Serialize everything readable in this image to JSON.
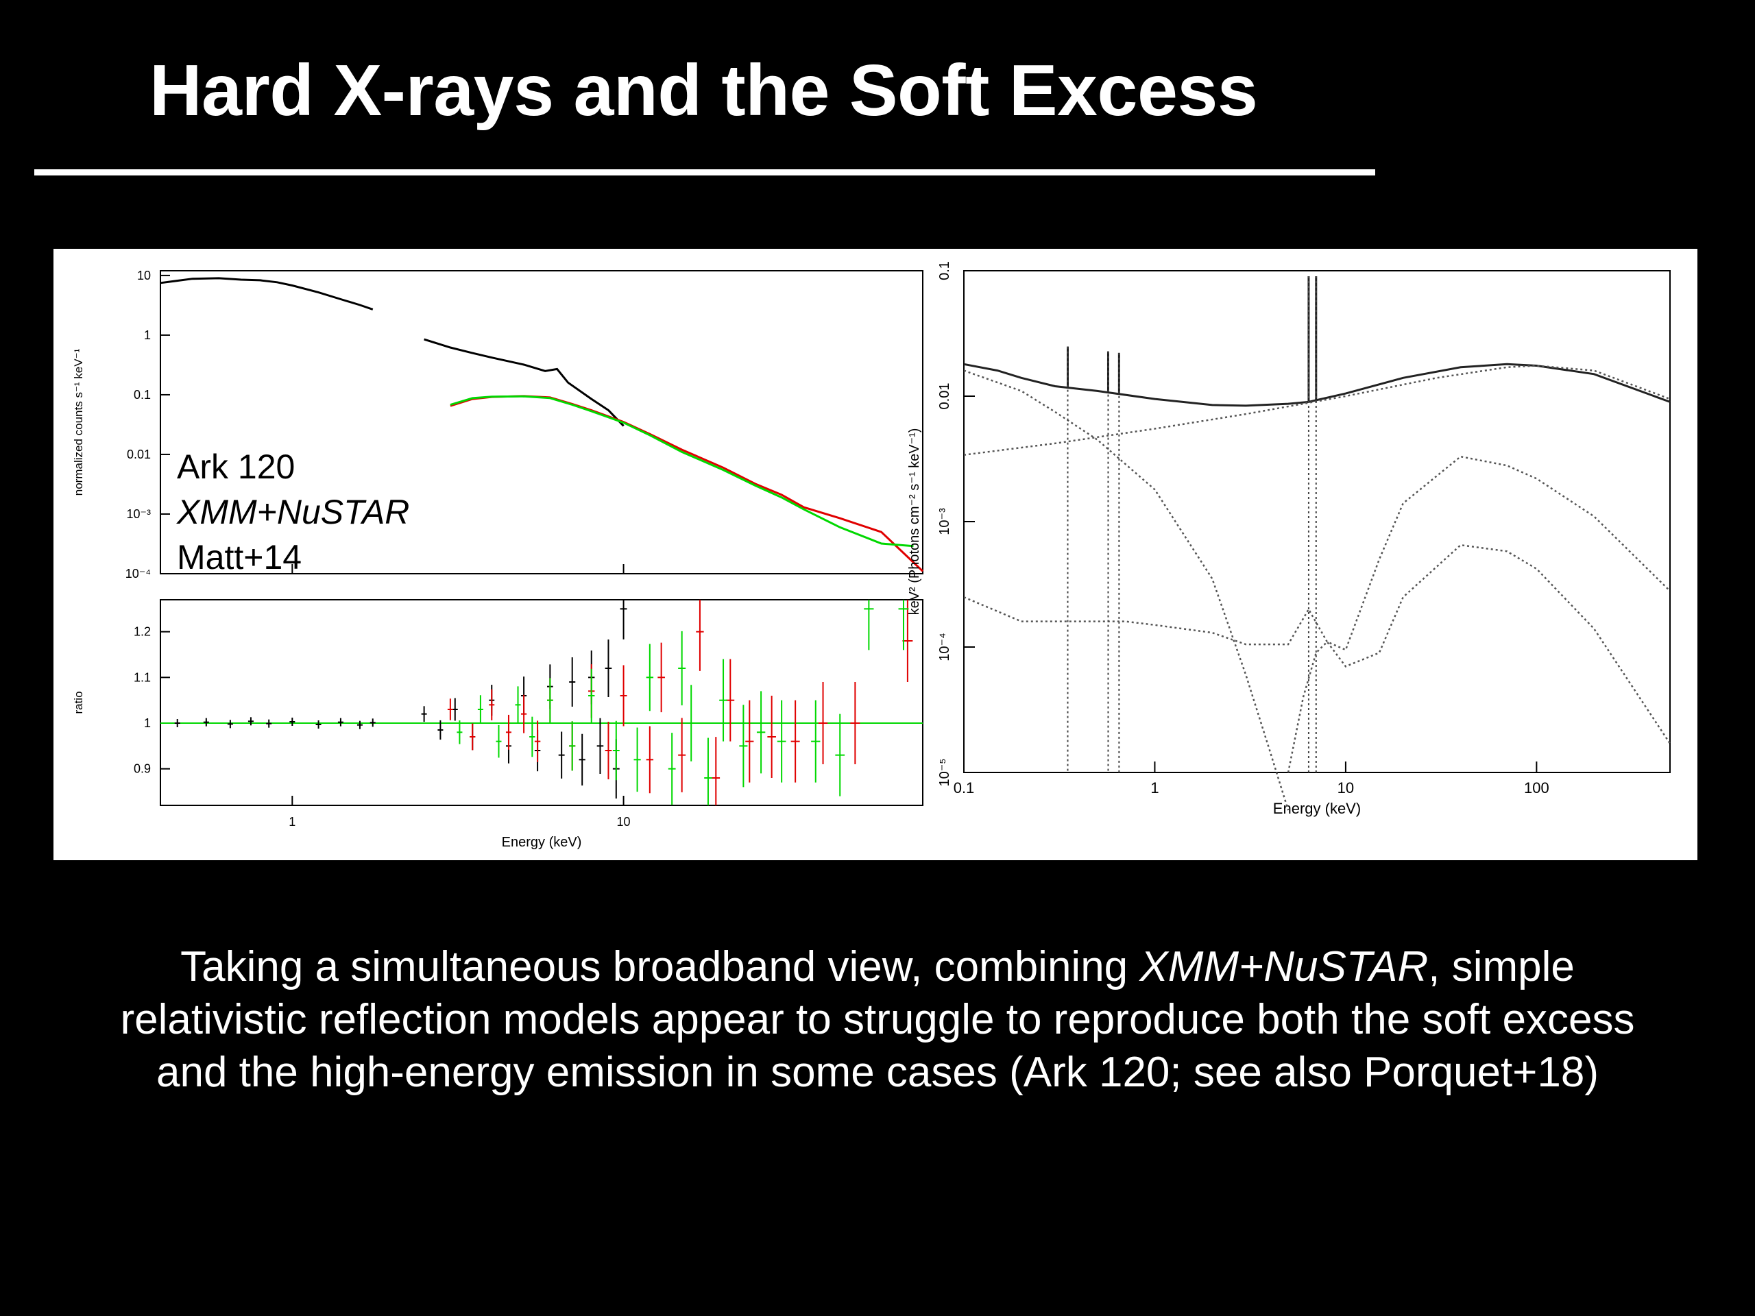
{
  "slide": {
    "title": "Hard X-rays and the Soft Excess",
    "caption": {
      "part1": "Taking a simultaneous broadband view, combining ",
      "italic": "XMM+NuSTAR",
      "part2": ", simple relativistic reflection models appear to struggle to reproduce both the soft excess and the high-energy emission in some cases (Ark 120; see also Porquet+18)"
    },
    "colors": {
      "background": "#000000",
      "text": "#ffffff",
      "panel": "#ffffff"
    }
  },
  "chart_data": [
    {
      "type": "line",
      "panel": "spectrum",
      "xscale": "log",
      "yscale": "log",
      "xlim": [
        0.4,
        80
      ],
      "ylim": [
        0.0001,
        12
      ],
      "xlabel": "Energy (keV)",
      "ylabel": "normalized counts s⁻¹ keV⁻¹",
      "xticks": [
        "1",
        "10"
      ],
      "yticks": [
        "10",
        "1",
        "0.1",
        "0.01",
        "10⁻³",
        "10⁻⁴"
      ],
      "annotations": [
        "Ark 120",
        "XMM+NuSTAR",
        "Matt+14"
      ],
      "series": [
        {
          "color": "#000000",
          "segments": [
            {
              "x": [
                0.4,
                0.5,
                0.6,
                0.7,
                0.8,
                0.9,
                1.0,
                1.2,
                1.4,
                1.6,
                1.75
              ],
              "y": [
                7.5,
                8.8,
                9.0,
                8.5,
                8.3,
                7.7,
                6.8,
                5.2,
                4.0,
                3.2,
                2.7
              ]
            },
            {
              "x": [
                2.5,
                3.0,
                3.5,
                4.0,
                5.0,
                5.8,
                6.3,
                6.8,
                8.0,
                9.0,
                10.0
              ],
              "y": [
                0.85,
                0.62,
                0.5,
                0.42,
                0.32,
                0.25,
                0.27,
                0.16,
                0.085,
                0.055,
                0.03
              ]
            }
          ]
        },
        {
          "color": "#e00000",
          "segments": [
            {
              "x": [
                3.0,
                3.5,
                4.0,
                5.0,
                6.0,
                7.0,
                8.0,
                10,
                12,
                15,
                20,
                25,
                30,
                35,
                45,
                60,
                80
              ],
              "y": [
                0.065,
                0.085,
                0.092,
                0.095,
                0.09,
                0.07,
                0.055,
                0.035,
                0.022,
                0.012,
                0.006,
                0.0032,
                0.0021,
                0.0013,
                0.00085,
                0.0005,
                0.00011
              ]
            }
          ]
        },
        {
          "color": "#00d800",
          "segments": [
            {
              "x": [
                3.0,
                3.5,
                4.0,
                5.0,
                6.0,
                7.0,
                8.0,
                10,
                12,
                15,
                20,
                25,
                30,
                35,
                45,
                60,
                75
              ],
              "y": [
                0.068,
                0.088,
                0.093,
                0.094,
                0.088,
                0.068,
                0.053,
                0.034,
                0.021,
                0.011,
                0.0055,
                0.003,
                0.0019,
                0.0012,
                0.0006,
                0.00032,
                0.00029
              ]
            }
          ]
        }
      ]
    },
    {
      "type": "scatter",
      "panel": "ratio",
      "xscale": "log",
      "xlim": [
        0.4,
        80
      ],
      "ylim": [
        0.82,
        1.27
      ],
      "xlabel": "Energy (keV)",
      "ylabel": "ratio",
      "xticks": [
        "1",
        "10"
      ],
      "yticks": [
        "1.2",
        "1.1",
        "1",
        "0.9"
      ],
      "reference_line": {
        "y": 1,
        "color": "#00d800"
      },
      "series": [
        {
          "color": "#000000",
          "x": [
            0.45,
            0.55,
            0.65,
            0.75,
            0.85,
            1.0,
            1.2,
            1.4,
            1.6,
            1.75,
            2.5,
            2.8,
            3.1,
            3.5,
            4.0,
            4.5,
            5.0,
            5.5,
            6.0,
            6.5,
            7.0,
            7.5,
            8.0,
            8.5,
            9.0,
            9.5,
            10
          ],
          "y": [
            1.0,
            1.002,
            0.998,
            1.004,
            0.999,
            1.003,
            0.997,
            1.002,
            0.996,
            1.001,
            1.02,
            0.985,
            1.03,
            0.97,
            1.05,
            0.95,
            1.06,
            0.94,
            1.08,
            0.93,
            1.09,
            0.92,
            1.1,
            0.95,
            1.12,
            0.9,
            1.25
          ]
        },
        {
          "color": "#e00000",
          "x": [
            3.0,
            3.5,
            4.0,
            4.5,
            5.0,
            5.5,
            6.0,
            7.0,
            8.0,
            9.0,
            10,
            12,
            13,
            15,
            17,
            19,
            21,
            24,
            28,
            33,
            40,
            50,
            72
          ],
          "y": [
            1.03,
            0.97,
            1.04,
            0.98,
            1.02,
            0.96,
            1.05,
            0.95,
            1.07,
            0.94,
            1.06,
            0.92,
            1.1,
            0.93,
            1.2,
            0.88,
            1.05,
            0.96,
            0.97,
            0.96,
            1.0,
            1.0,
            1.18
          ]
        },
        {
          "color": "#00d800",
          "x": [
            3.2,
            3.7,
            4.2,
            4.8,
            5.3,
            6.0,
            7.0,
            8.0,
            9.5,
            11,
            12,
            14,
            15,
            16,
            18,
            20,
            23,
            26,
            30,
            38,
            45,
            55,
            70
          ],
          "y": [
            0.98,
            1.03,
            0.96,
            1.04,
            0.97,
            1.05,
            0.95,
            1.06,
            0.94,
            0.92,
            1.1,
            0.9,
            1.12,
            1.0,
            0.88,
            1.05,
            0.95,
            0.98,
            0.96,
            0.96,
            0.93,
            1.25,
            1.25
          ]
        }
      ]
    },
    {
      "type": "line",
      "panel": "model",
      "xscale": "log",
      "yscale": "log",
      "xlim": [
        0.1,
        500
      ],
      "ylim": [
        1e-05,
        0.1
      ],
      "xlabel": "Energy (keV)",
      "ylabel": "keV² (Photons cm⁻² s⁻¹ keV⁻¹)",
      "xticks": [
        "0.1",
        "1",
        "10",
        "100"
      ],
      "yticks": [
        "0.1",
        "0.01",
        "10⁻³",
        "10⁻⁴",
        "10⁻⁵"
      ],
      "series": [
        {
          "style": "solid",
          "x": [
            0.1,
            0.15,
            0.2,
            0.3,
            0.5,
            1.0,
            2.0,
            3.0,
            5.0,
            6.4,
            10,
            20,
            40,
            70,
            100,
            200,
            500
          ],
          "y": [
            0.018,
            0.016,
            0.014,
            0.012,
            0.011,
            0.0095,
            0.0085,
            0.0084,
            0.0087,
            0.009,
            0.0105,
            0.014,
            0.017,
            0.018,
            0.0175,
            0.015,
            0.009
          ]
        },
        {
          "style": "dotted",
          "x": [
            0.1,
            0.2,
            0.3,
            0.5,
            1.0,
            2.0,
            3.0,
            4.0,
            5.0
          ],
          "y": [
            0.016,
            0.011,
            0.0075,
            0.0045,
            0.0018,
            0.00035,
            6e-05,
            1.5e-05,
            5e-06
          ]
        },
        {
          "style": "dotted",
          "x": [
            0.1,
            0.3,
            1.0,
            3.0,
            10,
            30,
            70,
            100,
            200,
            500
          ],
          "y": [
            0.0034,
            0.0042,
            0.0055,
            0.0072,
            0.01,
            0.014,
            0.017,
            0.0175,
            0.016,
            0.0095
          ]
        },
        {
          "style": "dotted",
          "x": [
            0.1,
            0.2,
            0.4,
            0.7,
            1.0,
            2.0,
            3.0,
            5.0,
            6.4,
            8.0,
            10,
            15,
            20,
            40,
            70,
            100,
            200,
            500
          ],
          "y": [
            0.00025,
            0.00016,
            0.00016,
            0.00016,
            0.00015,
            0.00013,
            0.000105,
            0.000105,
            0.0002,
            0.00011,
            9.5e-05,
            0.0005,
            0.0014,
            0.0033,
            0.0028,
            0.0022,
            0.0011,
            0.00028
          ]
        },
        {
          "style": "dotted",
          "x": [
            5.0,
            6.0,
            7.0,
            8.0,
            10,
            15,
            20,
            40,
            70,
            100,
            200,
            500
          ],
          "y": [
            1e-05,
            4e-05,
            9e-05,
            0.00011,
            7e-05,
            9e-05,
            0.00025,
            0.00065,
            0.00058,
            0.00042,
            0.00014,
            1.7e-05
          ]
        }
      ],
      "emission_lines_keV": [
        0.35,
        0.57,
        0.65,
        6.4,
        7.0
      ]
    }
  ]
}
